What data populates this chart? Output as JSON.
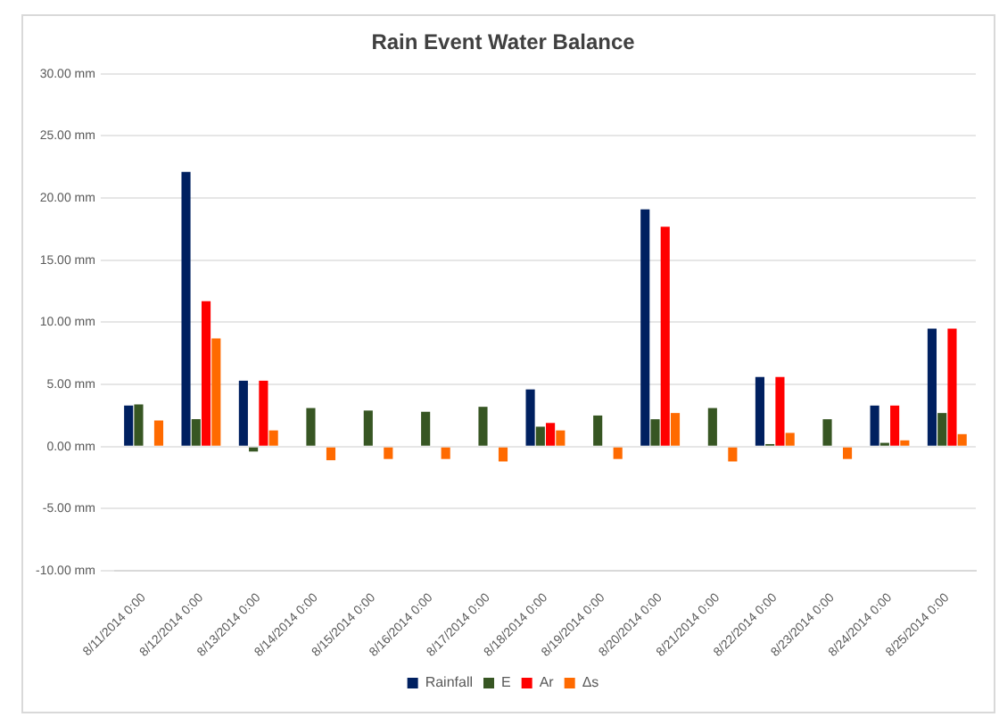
{
  "chart_data": {
    "type": "bar",
    "title": "Rain Event Water Balance",
    "categories": [
      "8/11/2014 0:00",
      "8/12/2014 0:00",
      "8/13/2014 0:00",
      "8/14/2014 0:00",
      "8/15/2014 0:00",
      "8/16/2014 0:00",
      "8/17/2014 0:00",
      "8/18/2014 0:00",
      "8/19/2014 0:00",
      "8/20/2014 0:00",
      "8/21/2014 0:00",
      "8/22/2014 0:00",
      "8/23/2014 0:00",
      "8/24/2014 0:00",
      "8/25/2014 0:00"
    ],
    "series": [
      {
        "name": "Rainfall",
        "color": "#002060",
        "values": [
          3.3,
          22.1,
          5.3,
          null,
          null,
          null,
          null,
          4.6,
          null,
          19.1,
          null,
          5.6,
          null,
          3.3,
          9.5
        ]
      },
      {
        "name": "E",
        "color": "#375623",
        "values": [
          3.4,
          2.2,
          -0.4,
          3.1,
          2.9,
          2.8,
          3.2,
          1.6,
          2.5,
          2.2,
          3.1,
          0.2,
          2.2,
          0.3,
          2.7
        ]
      },
      {
        "name": "Ar",
        "color": "#ff0000",
        "values": [
          null,
          11.7,
          5.3,
          null,
          null,
          null,
          null,
          1.9,
          null,
          17.7,
          null,
          5.6,
          null,
          3.3,
          9.5
        ]
      },
      {
        "name": "Δs",
        "color": "#ff6a00",
        "values": [
          2.1,
          8.7,
          1.3,
          -1.1,
          -1.0,
          -1.0,
          -1.2,
          1.3,
          -1.0,
          2.7,
          -1.2,
          1.1,
          -1.0,
          0.5,
          1.0
        ]
      }
    ],
    "ylim": [
      -10,
      30
    ],
    "yticks": [
      {
        "value": -10,
        "label": "-10.00 mm"
      },
      {
        "value": -5,
        "label": "-5.00 mm"
      },
      {
        "value": 0,
        "label": "0.00 mm"
      },
      {
        "value": 5,
        "label": "5.00 mm"
      },
      {
        "value": 10,
        "label": "10.00 mm"
      },
      {
        "value": 15,
        "label": "15.00 mm"
      },
      {
        "value": 20,
        "label": "20.00 mm"
      },
      {
        "value": 25,
        "label": "25.00 mm"
      },
      {
        "value": 30,
        "label": "30.00 mm"
      }
    ],
    "grid": "y",
    "legend": "bottom"
  }
}
